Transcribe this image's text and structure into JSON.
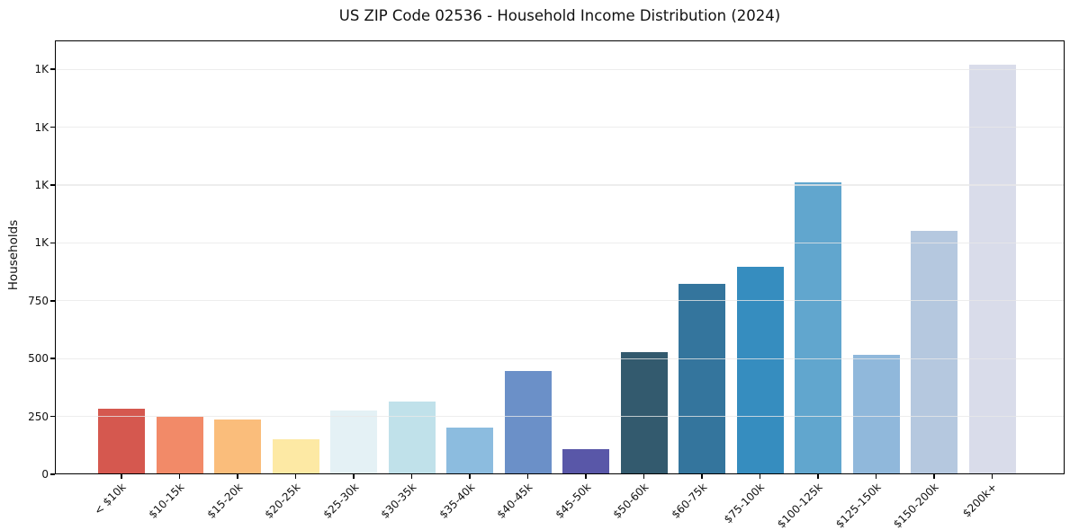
{
  "chart_data": {
    "type": "bar",
    "title": "US ZIP Code 02536 - Household Income Distribution (2024)",
    "xlabel": "",
    "ylabel": "Households",
    "categories": [
      "< $10k",
      "$10-15k",
      "$15-20k",
      "$20-25k",
      "$25-30k",
      "$30-35k",
      "$35-40k",
      "$40-45k",
      "$45-50k",
      "$50-60k",
      "$60-75k",
      "$75-100k",
      "$100-125k",
      "$125-150k",
      "$150-200k",
      "$200k+"
    ],
    "values": [
      285,
      247,
      238,
      150,
      275,
      315,
      202,
      445,
      108,
      530,
      825,
      898,
      1260,
      515,
      1052,
      1772
    ],
    "bar_colors": [
      "#d5584f",
      "#f28a68",
      "#fabd7b",
      "#fde9a4",
      "#e4f1f5",
      "#c0e1ea",
      "#8cbcdf",
      "#6b90c8",
      "#5957a8",
      "#335a6e",
      "#34759d",
      "#368dbf",
      "#61a6ce",
      "#90b8db",
      "#b5c8df",
      "#d9dcea"
    ],
    "ylim": [
      0,
      1875
    ],
    "yticks": [
      {
        "value": 0,
        "label": "0"
      },
      {
        "value": 250,
        "label": "250"
      },
      {
        "value": 500,
        "label": "500"
      },
      {
        "value": 750,
        "label": "750"
      },
      {
        "value": 1000,
        "label": "1K"
      },
      {
        "value": 1250,
        "label": "1K"
      },
      {
        "value": 1500,
        "label": "1K"
      },
      {
        "value": 1750,
        "label": "1K"
      }
    ],
    "grid": "horizontal",
    "legend": "none",
    "background": "#ffffff",
    "x_tick_rotation": 45
  }
}
